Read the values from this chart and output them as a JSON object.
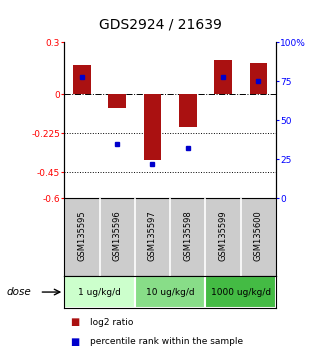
{
  "title": "GDS2924 / 21639",
  "samples": [
    "GSM135595",
    "GSM135596",
    "GSM135597",
    "GSM135598",
    "GSM135599",
    "GSM135600"
  ],
  "log2_ratios": [
    0.17,
    -0.08,
    -0.38,
    -0.19,
    0.2,
    0.18
  ],
  "percentile_ranks": [
    78,
    35,
    22,
    32,
    78,
    75
  ],
  "bar_color": "#aa1111",
  "dot_color": "#0000cc",
  "ylim_left": [
    -0.6,
    0.3
  ],
  "ylim_right": [
    0,
    100
  ],
  "yticks_left": [
    0.3,
    0,
    -0.225,
    -0.45,
    -0.6
  ],
  "ytick_labels_left": [
    "0.3",
    "0",
    "-0.225",
    "-0.45",
    "-0.6"
  ],
  "yticks_right": [
    100,
    75,
    50,
    25,
    0
  ],
  "ytick_labels_right": [
    "100%",
    "75",
    "50",
    "25",
    "0"
  ],
  "dose_groups": [
    {
      "label": "1 ug/kg/d",
      "samples": [
        0,
        1
      ],
      "color": "#ccffcc"
    },
    {
      "label": "10 ug/kg/d",
      "samples": [
        2,
        3
      ],
      "color": "#88dd88"
    },
    {
      "label": "1000 ug/kg/d",
      "samples": [
        4,
        5
      ],
      "color": "#44bb44"
    }
  ],
  "dose_label": "dose",
  "legend_red": "log2 ratio",
  "legend_blue": "percentile rank within the sample",
  "bg_plot": "#ffffff",
  "bg_samples": "#cccccc",
  "bar_width": 0.5
}
